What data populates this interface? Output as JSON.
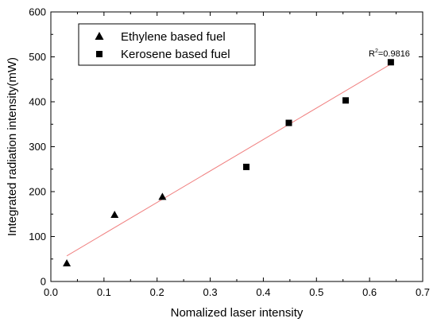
{
  "chart_data": {
    "type": "scatter",
    "title": "",
    "xlabel": "Nomalized laser intensity",
    "ylabel": "Integrated radiation intensity(mW)",
    "xlim": [
      0.0,
      0.7
    ],
    "ylim": [
      0,
      600
    ],
    "xticks": [
      0.0,
      0.1,
      0.2,
      0.3,
      0.4,
      0.5,
      0.6,
      0.7
    ],
    "xtick_labels": [
      "0.0",
      "0.1",
      "0.2",
      "0.3",
      "0.4",
      "0.5",
      "0.6",
      "0.7"
    ],
    "yticks": [
      0,
      100,
      200,
      300,
      400,
      500,
      600
    ],
    "ytick_labels": [
      "0",
      "100",
      "200",
      "300",
      "400",
      "500",
      "600"
    ],
    "grid": false,
    "legend_position": "top-left",
    "series": [
      {
        "name": "Ethylene based fuel",
        "marker": "triangle",
        "color": "#000000",
        "points": [
          {
            "x": 0.03,
            "y": 40
          },
          {
            "x": 0.12,
            "y": 148
          },
          {
            "x": 0.21,
            "y": 188
          }
        ]
      },
      {
        "name": "Kerosene based fuel",
        "marker": "square",
        "color": "#000000",
        "points": [
          {
            "x": 0.368,
            "y": 255
          },
          {
            "x": 0.448,
            "y": 353
          },
          {
            "x": 0.555,
            "y": 403
          },
          {
            "x": 0.64,
            "y": 488
          }
        ]
      }
    ],
    "fit_line": {
      "color": "#f08080",
      "x": [
        0.03,
        0.64
      ],
      "y": [
        57,
        484
      ],
      "annotation": {
        "base": "R",
        "sup": "2",
        "rest": "=0.9816"
      }
    }
  }
}
